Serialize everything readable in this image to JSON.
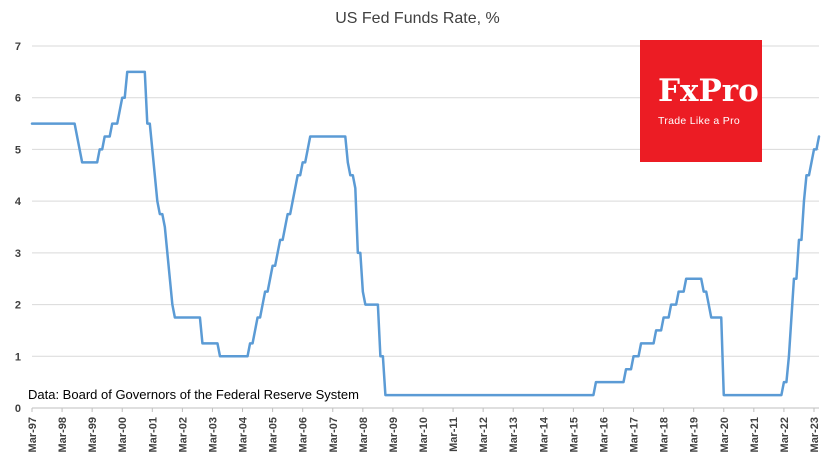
{
  "title": "US Fed Funds Rate, %",
  "caption": "Data: Board of Governors of the Federal Reserve System",
  "logo": {
    "name": "FxPro",
    "tagline": "Trade Like a Pro",
    "bg_color": "#EC1C24"
  },
  "chart_data": {
    "type": "line",
    "title": "US Fed Funds Rate, %",
    "series_name": "US Fed Funds Rate",
    "x_start": "Mar-1997",
    "frequency": "monthly",
    "xlabel": "",
    "ylabel": "",
    "ylim": [
      0,
      7
    ],
    "y_ticks": [
      0,
      1,
      2,
      3,
      4,
      5,
      6,
      7
    ],
    "grid": true,
    "legend": false,
    "line_color": "#5B9BD5",
    "grid_color": "#d9d9d9",
    "axis_color": "#bfbfbf",
    "tick_label_color": "#404040",
    "x_tick_interval_months": 12,
    "x_tick_labels": [
      "Mar-97",
      "Mar-98",
      "Mar-99",
      "Mar-00",
      "Mar-01",
      "Mar-02",
      "Mar-03",
      "Mar-04",
      "Mar-05",
      "Mar-06",
      "Mar-07",
      "Mar-08",
      "Mar-09",
      "Mar-10",
      "Mar-11",
      "Mar-12",
      "Mar-13",
      "Mar-14",
      "Mar-15",
      "Mar-16",
      "Mar-17",
      "Mar-18",
      "Mar-19",
      "Mar-20",
      "Mar-21",
      "Mar-22",
      "Mar-23"
    ],
    "values": [
      5.5,
      5.5,
      5.5,
      5.5,
      5.5,
      5.5,
      5.5,
      5.5,
      5.5,
      5.5,
      5.5,
      5.5,
      5.5,
      5.5,
      5.5,
      5.5,
      5.5,
      5.5,
      5.25,
      5.0,
      4.75,
      4.75,
      4.75,
      4.75,
      4.75,
      4.75,
      4.75,
      5.0,
      5.0,
      5.25,
      5.25,
      5.25,
      5.5,
      5.5,
      5.5,
      5.75,
      6.0,
      6.0,
      6.5,
      6.5,
      6.5,
      6.5,
      6.5,
      6.5,
      6.5,
      6.5,
      5.5,
      5.5,
      5.0,
      4.5,
      4.0,
      3.75,
      3.75,
      3.5,
      3.0,
      2.5,
      2.0,
      1.75,
      1.75,
      1.75,
      1.75,
      1.75,
      1.75,
      1.75,
      1.75,
      1.75,
      1.75,
      1.75,
      1.25,
      1.25,
      1.25,
      1.25,
      1.25,
      1.25,
      1.25,
      1.0,
      1.0,
      1.0,
      1.0,
      1.0,
      1.0,
      1.0,
      1.0,
      1.0,
      1.0,
      1.0,
      1.0,
      1.25,
      1.25,
      1.5,
      1.75,
      1.75,
      2.0,
      2.25,
      2.25,
      2.5,
      2.75,
      2.75,
      3.0,
      3.25,
      3.25,
      3.5,
      3.75,
      3.75,
      4.0,
      4.25,
      4.5,
      4.5,
      4.75,
      4.75,
      5.0,
      5.25,
      5.25,
      5.25,
      5.25,
      5.25,
      5.25,
      5.25,
      5.25,
      5.25,
      5.25,
      5.25,
      5.25,
      5.25,
      5.25,
      5.25,
      4.75,
      4.5,
      4.5,
      4.25,
      3.0,
      3.0,
      2.25,
      2.0,
      2.0,
      2.0,
      2.0,
      2.0,
      2.0,
      1.0,
      1.0,
      0.25,
      0.25,
      0.25,
      0.25,
      0.25,
      0.25,
      0.25,
      0.25,
      0.25,
      0.25,
      0.25,
      0.25,
      0.25,
      0.25,
      0.25,
      0.25,
      0.25,
      0.25,
      0.25,
      0.25,
      0.25,
      0.25,
      0.25,
      0.25,
      0.25,
      0.25,
      0.25,
      0.25,
      0.25,
      0.25,
      0.25,
      0.25,
      0.25,
      0.25,
      0.25,
      0.25,
      0.25,
      0.25,
      0.25,
      0.25,
      0.25,
      0.25,
      0.25,
      0.25,
      0.25,
      0.25,
      0.25,
      0.25,
      0.25,
      0.25,
      0.25,
      0.25,
      0.25,
      0.25,
      0.25,
      0.25,
      0.25,
      0.25,
      0.25,
      0.25,
      0.25,
      0.25,
      0.25,
      0.25,
      0.25,
      0.25,
      0.25,
      0.25,
      0.25,
      0.25,
      0.25,
      0.25,
      0.25,
      0.25,
      0.25,
      0.25,
      0.25,
      0.25,
      0.25,
      0.25,
      0.25,
      0.25,
      0.25,
      0.25,
      0.5,
      0.5,
      0.5,
      0.5,
      0.5,
      0.5,
      0.5,
      0.5,
      0.5,
      0.5,
      0.5,
      0.5,
      0.75,
      0.75,
      0.75,
      1.0,
      1.0,
      1.0,
      1.25,
      1.25,
      1.25,
      1.25,
      1.25,
      1.25,
      1.5,
      1.5,
      1.5,
      1.75,
      1.75,
      1.75,
      2.0,
      2.0,
      2.0,
      2.25,
      2.25,
      2.25,
      2.5,
      2.5,
      2.5,
      2.5,
      2.5,
      2.5,
      2.5,
      2.25,
      2.25,
      2.0,
      1.75,
      1.75,
      1.75,
      1.75,
      1.75,
      0.25,
      0.25,
      0.25,
      0.25,
      0.25,
      0.25,
      0.25,
      0.25,
      0.25,
      0.25,
      0.25,
      0.25,
      0.25,
      0.25,
      0.25,
      0.25,
      0.25,
      0.25,
      0.25,
      0.25,
      0.25,
      0.25,
      0.25,
      0.25,
      0.5,
      0.5,
      1.0,
      1.75,
      2.5,
      2.5,
      3.25,
      3.25,
      4.0,
      4.5,
      4.5,
      4.75,
      5.0,
      5.0,
      5.25
    ]
  }
}
